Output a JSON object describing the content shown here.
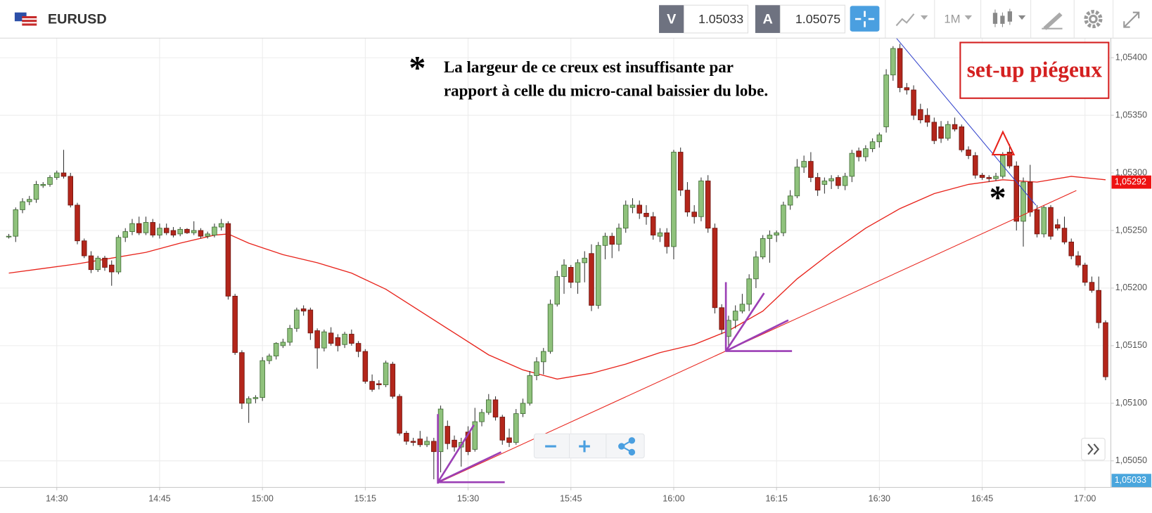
{
  "toolbar": {
    "symbol": "EURUSD",
    "bid_label": "V",
    "bid": 1.05033,
    "ask_label": "A",
    "ask": 1.05075,
    "timeframe": "1M"
  },
  "chart_data": {
    "type": "candlestick",
    "x": [
      "14:23",
      "14:24",
      "14:25",
      "14:26",
      "14:27",
      "14:28",
      "14:29",
      "14:30",
      "14:31",
      "14:32",
      "14:33",
      "14:34",
      "14:35",
      "14:36",
      "14:37",
      "14:38",
      "14:39",
      "14:40",
      "14:41",
      "14:42",
      "14:43",
      "14:44",
      "14:45",
      "14:46",
      "14:47",
      "14:48",
      "14:49",
      "14:50",
      "14:51",
      "14:52",
      "14:53",
      "14:54",
      "14:55",
      "14:56",
      "14:57",
      "14:58",
      "14:59",
      "15:00",
      "15:01",
      "15:02",
      "15:03",
      "15:04",
      "15:05",
      "15:06",
      "15:07",
      "15:08",
      "15:09",
      "15:10",
      "15:11",
      "15:12",
      "15:13",
      "15:14",
      "15:15",
      "15:16",
      "15:17",
      "15:18",
      "15:19",
      "15:20",
      "15:21",
      "15:22",
      "15:23",
      "15:24",
      "15:25",
      "15:26",
      "15:27",
      "15:28",
      "15:29",
      "15:30",
      "15:31",
      "15:32",
      "15:33",
      "15:34",
      "15:35",
      "15:36",
      "15:37",
      "15:38",
      "15:39",
      "15:40",
      "15:41",
      "15:42",
      "15:43",
      "15:44",
      "15:45",
      "15:46",
      "15:47",
      "15:48",
      "15:49",
      "15:50",
      "15:51",
      "15:52",
      "15:53",
      "15:54",
      "15:55",
      "15:56",
      "15:57",
      "15:58",
      "15:59",
      "16:00",
      "16:01",
      "16:02",
      "16:03",
      "16:04",
      "16:05",
      "16:06",
      "16:07",
      "16:08",
      "16:09",
      "16:10",
      "16:11",
      "16:12",
      "16:13",
      "16:14",
      "16:15",
      "16:16",
      "16:17",
      "16:18",
      "16:19",
      "16:20",
      "16:21",
      "16:22",
      "16:23",
      "16:24",
      "16:25",
      "16:26",
      "16:27",
      "16:28",
      "16:29",
      "16:30",
      "16:31",
      "16:32",
      "16:33",
      "16:34",
      "16:35",
      "16:36",
      "16:37",
      "16:38",
      "16:39",
      "16:40",
      "16:41",
      "16:42",
      "16:43",
      "16:44",
      "16:45",
      "16:46",
      "16:47",
      "16:48",
      "16:49",
      "16:50",
      "16:51",
      "16:52",
      "16:53",
      "16:54",
      "16:55",
      "16:56",
      "16:57",
      "16:58",
      "16:59",
      "17:00",
      "17:01",
      "17:02",
      "17:03"
    ],
    "open": [
      1.05245,
      1.05245,
      1.05268,
      1.05275,
      1.05277,
      1.05289,
      1.0529,
      1.05296,
      1.053,
      1.05297,
      1.05272,
      1.05241,
      1.05228,
      1.05216,
      1.05226,
      1.0522,
      1.05214,
      1.05244,
      1.05249,
      1.05256,
      1.05248,
      1.05257,
      1.05246,
      1.05252,
      1.0525,
      1.05247,
      1.05251,
      1.05248,
      1.0525,
      1.05245,
      1.05246,
      1.05253,
      1.05256,
      1.05193,
      1.05144,
      1.051,
      1.05104,
      1.05105,
      1.05137,
      1.05141,
      1.0515,
      1.05153,
      1.05165,
      1.05182,
      1.05181,
      1.05163,
      1.05148,
      1.05161,
      1.05157,
      1.05151,
      1.0516,
      1.05152,
      1.05145,
      1.05119,
      1.05117,
      1.05116,
      1.05134,
      1.05106,
      1.05074,
      1.05067,
      1.05069,
      1.05064,
      1.05067,
      1.05058,
      1.0508,
      1.05068,
      1.05062,
      1.05075,
      1.0506,
      1.05084,
      1.05092,
      1.05103,
      1.05088,
      1.0507,
      1.05066,
      1.05091,
      1.051,
      1.05124,
      1.05136,
      1.05145,
      1.05186,
      1.0521,
      1.05218,
      1.05205,
      1.05222,
      1.0523,
      1.05185,
      1.05237,
      1.05245,
      1.05238,
      1.05252,
      1.0527,
      1.05272,
      1.05265,
      1.05262,
      1.05245,
      1.05248,
      1.05236,
      1.05318,
      1.05285,
      1.05266,
      1.05262,
      1.05293,
      1.05252,
      1.05183,
      1.05158,
      1.05172,
      1.0518,
      1.05186,
      1.05208,
      1.05227,
      1.05243,
      1.05246,
      1.05248,
      1.05272,
      1.0528,
      1.05305,
      1.0531,
      1.05296,
      1.0529,
      1.05293,
      1.05296,
      1.05289,
      1.05297,
      1.05319,
      1.05314,
      1.05321,
      1.05327,
      1.0534,
      1.05385,
      1.05408,
      1.05374,
      1.05372,
      1.05355,
      1.0535,
      1.05344,
      1.0534,
      1.0533,
      1.05342,
      1.0534,
      1.0532,
      1.05315,
      1.05298,
      1.05296,
      1.05295,
      1.05297,
      1.05318,
      1.05306,
      1.05258,
      1.05292,
      1.05268,
      1.05247,
      1.0527,
      1.05255,
      1.05252,
      1.0524,
      1.05228,
      1.0522,
      1.05205,
      1.05198,
      1.0517
    ],
    "high": [
      1.05247,
      1.0527,
      1.05278,
      1.0528,
      1.05293,
      1.05292,
      1.05298,
      1.05302,
      1.0532,
      1.053,
      1.05274,
      1.05243,
      1.05232,
      1.05228,
      1.05228,
      1.05224,
      1.05246,
      1.05252,
      1.0526,
      1.05262,
      1.05262,
      1.0526,
      1.05256,
      1.05256,
      1.05253,
      1.05253,
      1.05252,
      1.05258,
      1.05252,
      1.05249,
      1.05256,
      1.0526,
      1.05258,
      1.05195,
      1.05146,
      1.05106,
      1.05107,
      1.0514,
      1.05143,
      1.05153,
      1.05156,
      1.05168,
      1.05183,
      1.05185,
      1.05183,
      1.05165,
      1.05164,
      1.05166,
      1.0516,
      1.05162,
      1.05164,
      1.05154,
      1.05147,
      1.05125,
      1.0512,
      1.05137,
      1.05136,
      1.05108,
      1.05076,
      1.0507,
      1.05076,
      1.05071,
      1.0507,
      1.05098,
      1.05085,
      1.05072,
      1.0507,
      1.0508,
      1.05096,
      1.05095,
      1.05108,
      1.05106,
      1.0509,
      1.05078,
      1.05095,
      1.05104,
      1.05128,
      1.0514,
      1.05148,
      1.0519,
      1.05215,
      1.05225,
      1.0522,
      1.05225,
      1.05232,
      1.05238,
      1.0524,
      1.05248,
      1.05248,
      1.05256,
      1.05276,
      1.05278,
      1.05276,
      1.05272,
      1.05266,
      1.05252,
      1.05252,
      1.0532,
      1.05322,
      1.05292,
      1.05272,
      1.05296,
      1.05298,
      1.05256,
      1.05186,
      1.05176,
      1.05185,
      1.05195,
      1.05212,
      1.05232,
      1.05246,
      1.0525,
      1.0525,
      1.05275,
      1.05285,
      1.05312,
      1.05315,
      1.05318,
      1.053,
      1.05296,
      1.05298,
      1.05298,
      1.053,
      1.0532,
      1.05322,
      1.05324,
      1.0533,
      1.05335,
      1.0539,
      1.0541,
      1.05412,
      1.05378,
      1.05376,
      1.0536,
      1.05356,
      1.05348,
      1.05345,
      1.05345,
      1.05348,
      1.05342,
      1.05323,
      1.05318,
      1.053,
      1.05298,
      1.053,
      1.05318,
      1.05325,
      1.0531,
      1.05296,
      1.05307,
      1.05272,
      1.05272,
      1.05272,
      1.0526,
      1.05262,
      1.05243,
      1.05232,
      1.05222,
      1.0521,
      1.0521,
      1.05172
    ],
    "low": [
      1.05243,
      1.0524,
      1.05265,
      1.05272,
      1.05274,
      1.05287,
      1.05288,
      1.05294,
      1.05295,
      1.0527,
      1.05238,
      1.05226,
      1.05213,
      1.05214,
      1.05215,
      1.05202,
      1.05212,
      1.0524,
      1.05246,
      1.05246,
      1.05246,
      1.05244,
      1.05243,
      1.05246,
      1.05244,
      1.05245,
      1.05247,
      1.05246,
      1.05243,
      1.05243,
      1.05244,
      1.0525,
      1.0519,
      1.05142,
      1.05095,
      1.05083,
      1.051,
      1.05102,
      1.05134,
      1.05138,
      1.05148,
      1.0515,
      1.05162,
      1.05176,
      1.05155,
      1.0513,
      1.05145,
      1.0515,
      1.05145,
      1.05148,
      1.0515,
      1.0514,
      1.05117,
      1.0511,
      1.05112,
      1.05114,
      1.05104,
      1.05072,
      1.05064,
      1.05063,
      1.05062,
      1.05062,
      1.05034,
      1.0504,
      1.0506,
      1.05058,
      1.05045,
      1.05055,
      1.05058,
      1.0508,
      1.0509,
      1.05085,
      1.05064,
      1.05062,
      1.05064,
      1.05088,
      1.05098,
      1.0512,
      1.05125,
      1.05143,
      1.05184,
      1.05195,
      1.052,
      1.05195,
      1.05205,
      1.0518,
      1.05182,
      1.05225,
      1.05226,
      1.05232,
      1.05248,
      1.05265,
      1.0526,
      1.05255,
      1.05242,
      1.0524,
      1.0523,
      1.05225,
      1.0528,
      1.05262,
      1.05256,
      1.05258,
      1.05248,
      1.05178,
      1.0516,
      1.05148,
      1.05165,
      1.05178,
      1.0518,
      1.052,
      1.05225,
      1.05222,
      1.0524,
      1.05245,
      1.05268,
      1.05278,
      1.053,
      1.05292,
      1.0528,
      1.05282,
      1.05286,
      1.05286,
      1.05285,
      1.05292,
      1.0531,
      1.0531,
      1.05318,
      1.05322,
      1.05335,
      1.0538,
      1.0537,
      1.05368,
      1.05346,
      1.05343,
      1.0534,
      1.05325,
      1.05326,
      1.05328,
      1.05336,
      1.05318,
      1.05312,
      1.05295,
      1.05294,
      1.05292,
      1.05293,
      1.05295,
      1.05304,
      1.0525,
      1.05236,
      1.05262,
      1.05244,
      1.05244,
      1.05242,
      1.0525,
      1.05238,
      1.05225,
      1.05218,
      1.05202,
      1.05196,
      1.05165,
      1.0512
    ],
    "close": [
      1.05245,
      1.05268,
      1.05275,
      1.05277,
      1.0529,
      1.0529,
      1.05296,
      1.053,
      1.05297,
      1.05272,
      1.05241,
      1.05228,
      1.05216,
      1.05226,
      1.05218,
      1.05214,
      1.05244,
      1.05249,
      1.05256,
      1.05248,
      1.05257,
      1.05246,
      1.05252,
      1.05248,
      1.05246,
      1.05251,
      1.05248,
      1.0525,
      1.05245,
      1.05247,
      1.05253,
      1.05256,
      1.05193,
      1.05144,
      1.051,
      1.05104,
      1.05105,
      1.05137,
      1.05141,
      1.05152,
      1.05153,
      1.05165,
      1.05181,
      1.0518,
      1.05161,
      1.05148,
      1.05162,
      1.05152,
      1.0515,
      1.0516,
      1.05152,
      1.05145,
      1.05119,
      1.05112,
      1.05116,
      1.05135,
      1.05106,
      1.05074,
      1.05067,
      1.05066,
      1.05064,
      1.05067,
      1.05058,
      1.05095,
      1.05065,
      1.05062,
      1.05066,
      1.05058,
      1.05084,
      1.05092,
      1.05103,
      1.05088,
      1.05068,
      1.05066,
      1.05091,
      1.051,
      1.05124,
      1.05136,
      1.05145,
      1.05186,
      1.0521,
      1.0522,
      1.05205,
      1.05222,
      1.05226,
      1.05185,
      1.05237,
      1.05245,
      1.05238,
      1.05252,
      1.05272,
      1.05272,
      1.05265,
      1.05262,
      1.05246,
      1.05248,
      1.05236,
      1.05318,
      1.05285,
      1.05266,
      1.05262,
      1.05293,
      1.05252,
      1.05183,
      1.05164,
      1.05172,
      1.0518,
      1.05186,
      1.05208,
      1.05227,
      1.05243,
      1.05246,
      1.05248,
      1.05272,
      1.0528,
      1.05305,
      1.0531,
      1.05296,
      1.05285,
      1.05293,
      1.05295,
      1.05289,
      1.05297,
      1.05317,
      1.05314,
      1.05321,
      1.05327,
      1.05333,
      1.05385,
      1.05408,
      1.05374,
      1.05372,
      1.0535,
      1.05346,
      1.05344,
      1.05328,
      1.0533,
      1.05342,
      1.05338,
      1.0532,
      1.05315,
      1.05298,
      1.05296,
      1.05295,
      1.05297,
      1.05315,
      1.05306,
      1.05258,
      1.05292,
      1.05266,
      1.05247,
      1.0527,
      1.05245,
      1.05252,
      1.0524,
      1.05228,
      1.0522,
      1.05205,
      1.05198,
      1.0517,
      1.05123
    ],
    "up_color": "#8fc27c",
    "down_color": "#b3261b",
    "ma": {
      "color": "#e8231b",
      "x": [
        "14:23",
        "14:28",
        "14:33",
        "14:38",
        "14:43",
        "14:48",
        "14:53",
        "14:55",
        "14:58",
        "15:03",
        "15:08",
        "15:13",
        "15:18",
        "15:23",
        "15:28",
        "15:33",
        "15:38",
        "15:43",
        "15:48",
        "15:53",
        "15:58",
        "16:03",
        "16:08",
        "16:13",
        "16:18",
        "16:23",
        "16:28",
        "16:33",
        "16:38",
        "16:43",
        "16:48",
        "16:53",
        "16:58",
        "17:03"
      ],
      "values": [
        1.05213,
        1.05217,
        1.05221,
        1.05226,
        1.05231,
        1.05239,
        1.05246,
        1.05247,
        1.05239,
        1.05229,
        1.05222,
        1.05213,
        1.05199,
        1.0518,
        1.05161,
        1.05142,
        1.05129,
        1.05121,
        1.05126,
        1.05134,
        1.05144,
        1.05151,
        1.05163,
        1.0518,
        1.05208,
        1.05231,
        1.05252,
        1.05269,
        1.05282,
        1.0529,
        1.05294,
        1.05292,
        1.05297,
        1.05294
      ]
    },
    "ylim": [
      1.05027,
      1.05417
    ],
    "yticks": [
      {
        "value": 1.054,
        "label": "1,05400"
      },
      {
        "value": 1.0535,
        "label": "1,05350"
      },
      {
        "value": 1.053,
        "label": "1,05300"
      },
      {
        "value": 1.0525,
        "label": "1,05250"
      },
      {
        "value": 1.052,
        "label": "1,05200"
      },
      {
        "value": 1.0515,
        "label": "1,05150"
      },
      {
        "value": 1.051,
        "label": "1,05100"
      },
      {
        "value": 1.0505,
        "label": "1,05050"
      }
    ],
    "xticks": [
      "14:30",
      "14:45",
      "15:00",
      "15:15",
      "15:30",
      "15:45",
      "16:00",
      "16:15",
      "16:30",
      "16:45",
      "17:00"
    ],
    "grid": true,
    "price_tags": [
      {
        "value": 1.05292,
        "label": "1,05292",
        "color": "#ee1111"
      },
      {
        "value": 1.05033,
        "label": "1,05033",
        "color": "#4aa6dd"
      }
    ],
    "annotations": {
      "marker": "*",
      "note": [
        "La largeur de ce creux est insuffisante par",
        "rapport à celle du micro-canal baissier du lobe."
      ],
      "setup": "set-up piégeux",
      "marker2": "*"
    }
  }
}
